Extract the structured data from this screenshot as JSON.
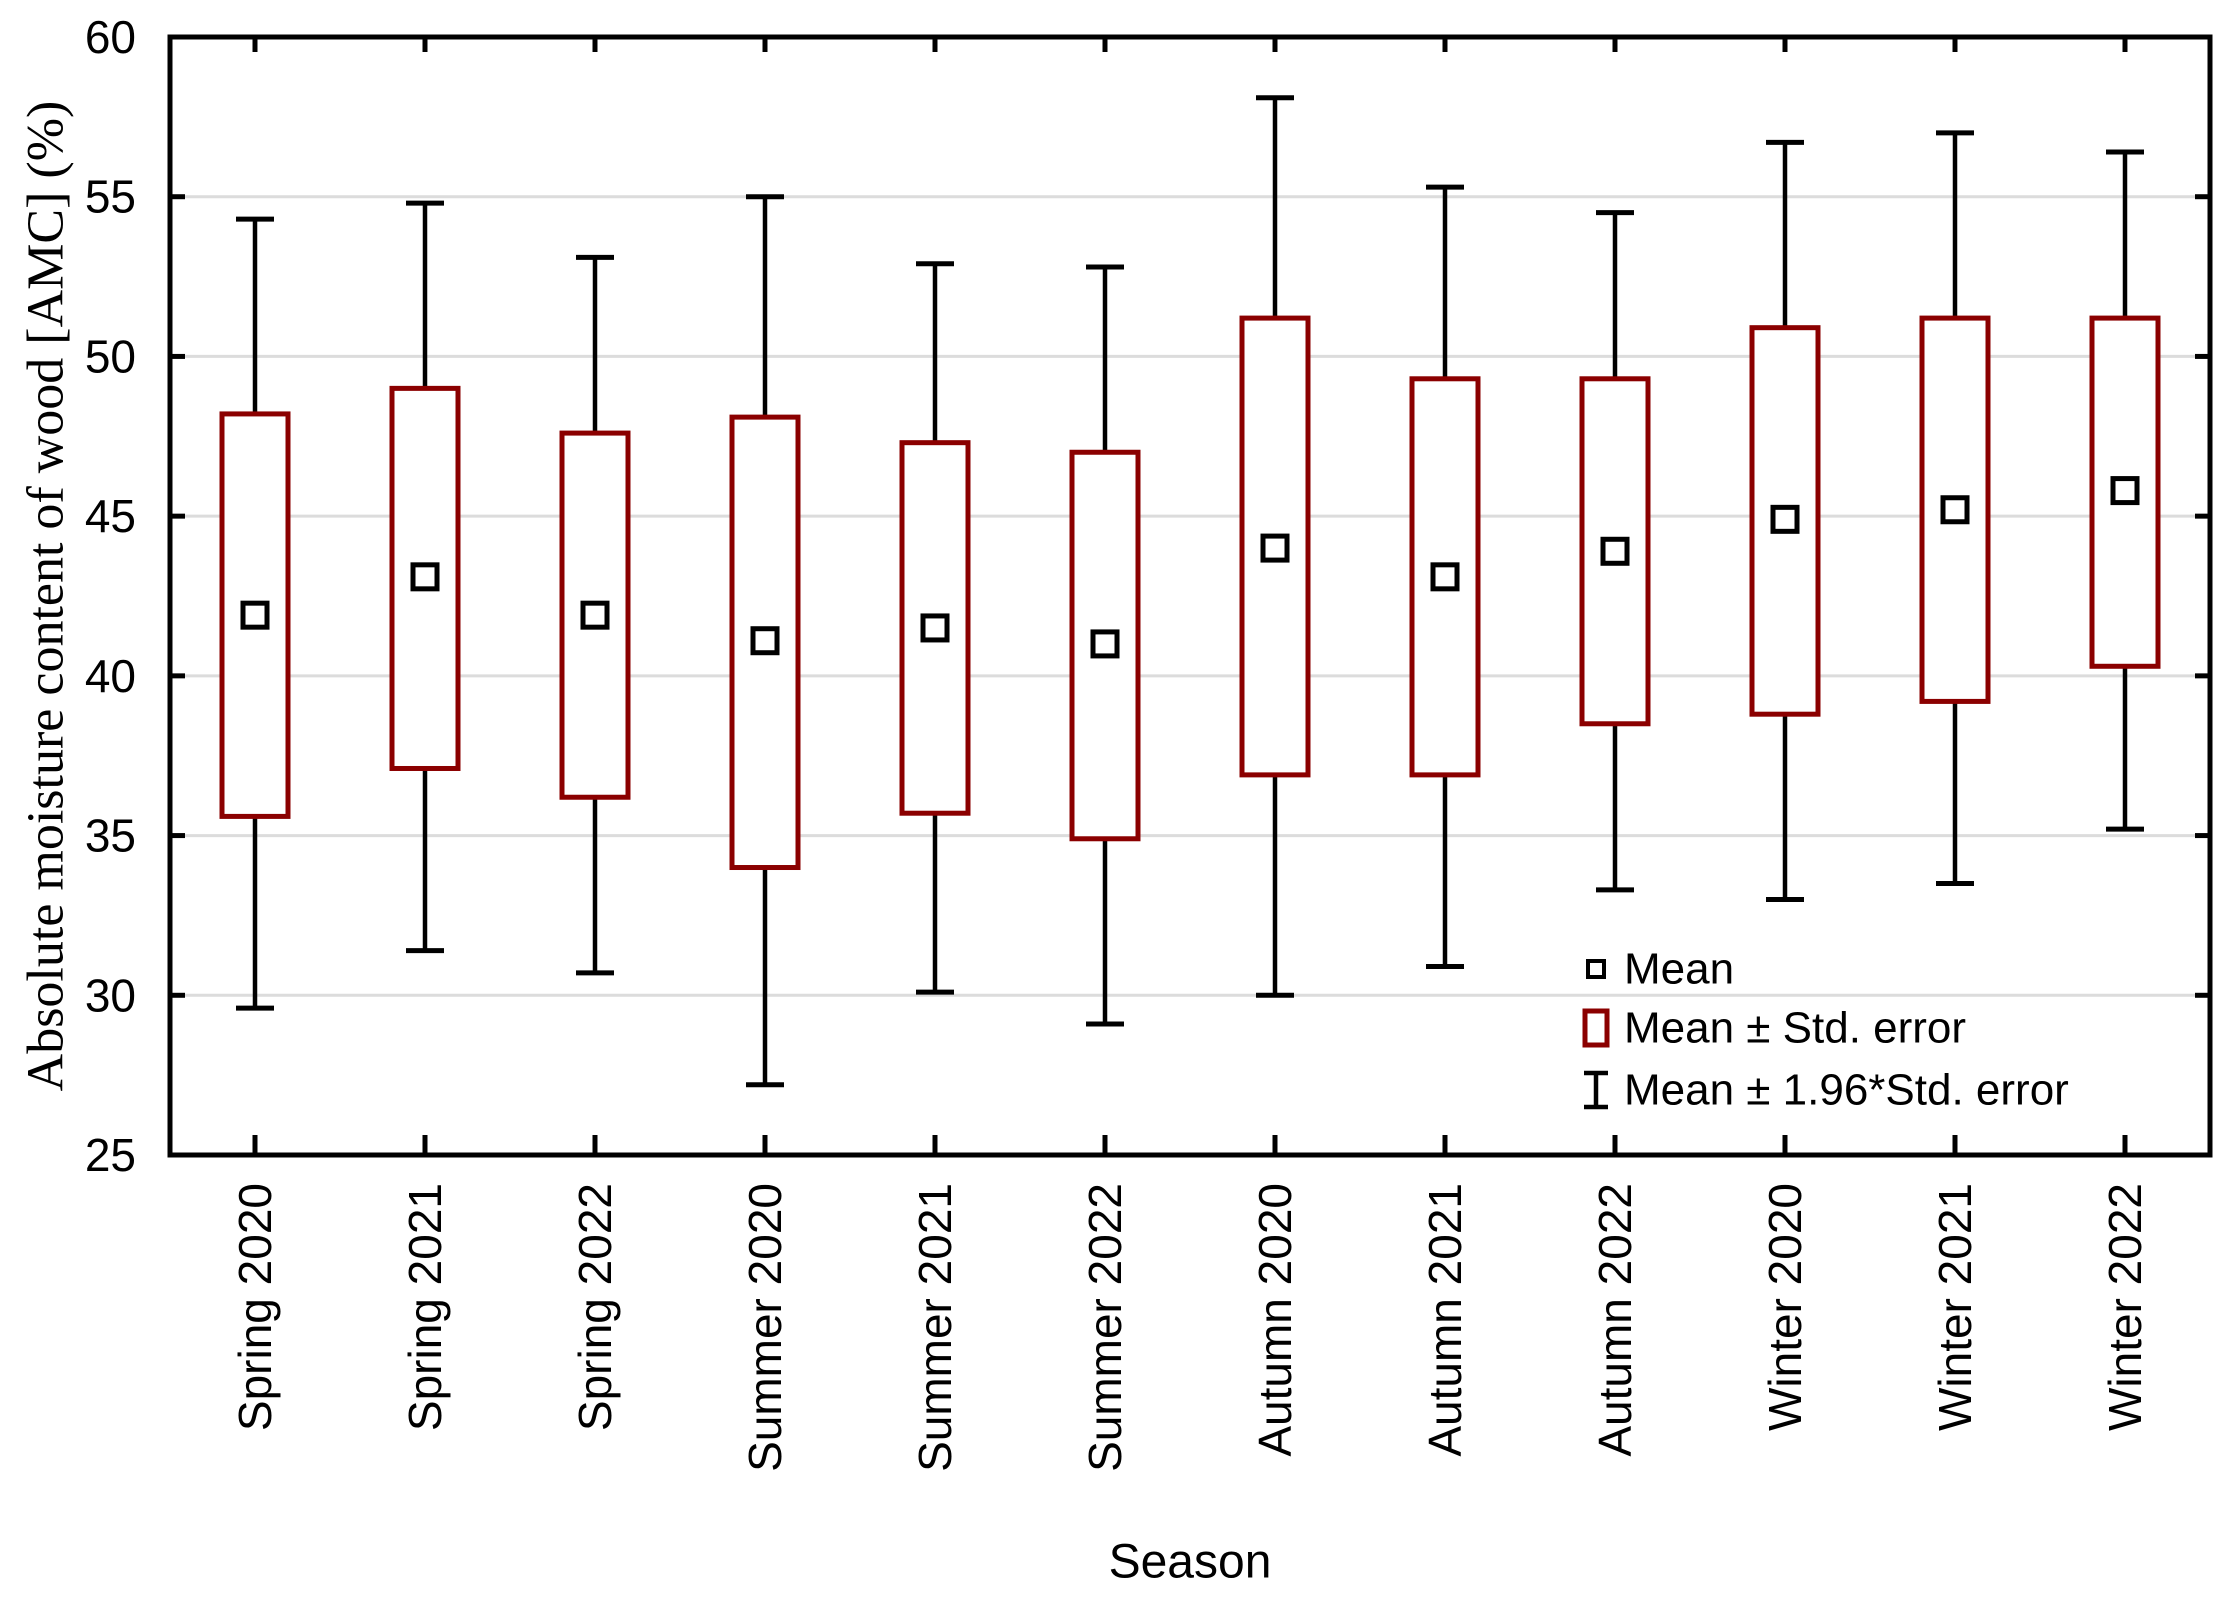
{
  "figure": {
    "background": "#ffffff"
  },
  "colors": {
    "box_stroke": "#8b0000",
    "whisker_stroke": "#000000",
    "mean_marker_stroke": "#000000",
    "marker_fill": "#ffffff",
    "grid": "#dcdcdc",
    "frame": "#000000",
    "text": "#000000"
  },
  "legend": {
    "rows": [
      {
        "symbol": "mean-square",
        "label": "Mean"
      },
      {
        "symbol": "red-box",
        "label": "Mean ± Std. error"
      },
      {
        "symbol": "whisker-ibeam",
        "label": "Mean ±  1.96*Std. error"
      }
    ]
  },
  "chart_data": {
    "type": "box",
    "title": "",
    "xlabel": "Season",
    "ylabel": "Absolute moisture content of wood [AMC] (%)",
    "ylim": [
      25,
      60
    ],
    "yticks": [
      25,
      30,
      35,
      40,
      45,
      50,
      55,
      60
    ],
    "grid": "horizontal",
    "legend_position": "inside-bottom-right",
    "legend": [
      "Mean",
      "Mean ± Std. error",
      "Mean ±  1.96*Std. error"
    ],
    "box_semantics": {
      "marker": "mean",
      "box": "mean ± standard error",
      "whiskers": "mean ± 1.96 * standard error"
    },
    "categories": [
      "Spring 2020",
      "Spring 2021",
      "Spring 2022",
      "Summer 2020",
      "Summer 2021",
      "Summer 2022",
      "Autumn 2020",
      "Autumn 2021",
      "Autumn 2022",
      "Winter 2020",
      "Winter 2021",
      "Winter 2022"
    ],
    "series": [
      {
        "name": "Spring 2020",
        "mean": 41.9,
        "box_low": 35.6,
        "box_high": 48.2,
        "whisker_low": 29.6,
        "whisker_high": 54.3
      },
      {
        "name": "Spring 2021",
        "mean": 43.1,
        "box_low": 37.1,
        "box_high": 49.0,
        "whisker_low": 31.4,
        "whisker_high": 54.8
      },
      {
        "name": "Spring 2022",
        "mean": 41.9,
        "box_low": 36.2,
        "box_high": 47.6,
        "whisker_low": 30.7,
        "whisker_high": 53.1
      },
      {
        "name": "Summer 2020",
        "mean": 41.1,
        "box_low": 34.0,
        "box_high": 48.1,
        "whisker_low": 27.2,
        "whisker_high": 55.0
      },
      {
        "name": "Summer 2021",
        "mean": 41.5,
        "box_low": 35.7,
        "box_high": 47.3,
        "whisker_low": 30.1,
        "whisker_high": 52.9
      },
      {
        "name": "Summer 2022",
        "mean": 41.0,
        "box_low": 34.9,
        "box_high": 47.0,
        "whisker_low": 29.1,
        "whisker_high": 52.8
      },
      {
        "name": "Autumn 2020",
        "mean": 44.0,
        "box_low": 36.9,
        "box_high": 51.2,
        "whisker_low": 30.0,
        "whisker_high": 58.1
      },
      {
        "name": "Autumn 2021",
        "mean": 43.1,
        "box_low": 36.9,
        "box_high": 49.3,
        "whisker_low": 30.9,
        "whisker_high": 55.3
      },
      {
        "name": "Autumn 2022",
        "mean": 43.9,
        "box_low": 38.5,
        "box_high": 49.3,
        "whisker_low": 33.3,
        "whisker_high": 54.5
      },
      {
        "name": "Winter 2020",
        "mean": 44.9,
        "box_low": 38.8,
        "box_high": 50.9,
        "whisker_low": 33.0,
        "whisker_high": 56.7
      },
      {
        "name": "Winter 2021",
        "mean": 45.2,
        "box_low": 39.2,
        "box_high": 51.2,
        "whisker_low": 33.5,
        "whisker_high": 57.0
      },
      {
        "name": "Winter 2022",
        "mean": 45.8,
        "box_low": 40.3,
        "box_high": 51.2,
        "whisker_low": 35.2,
        "whisker_high": 56.4
      }
    ]
  }
}
